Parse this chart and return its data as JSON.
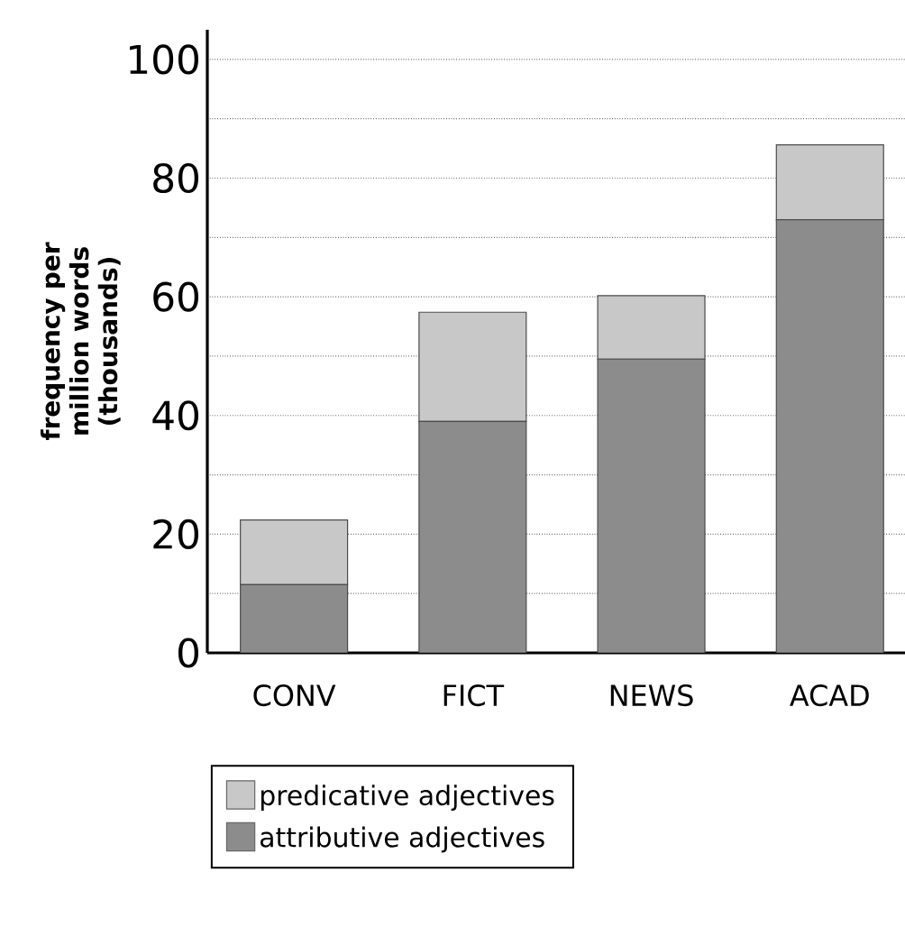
{
  "chart_data": {
    "type": "bar",
    "stacked": true,
    "ylabel": "frequency per million words (thousands)",
    "categories": [
      "CONV",
      "FICT",
      "NEWS",
      "ACAD"
    ],
    "series": [
      {
        "name": "attributive adjectives",
        "color": "#8c8c8c",
        "values": [
          11.5,
          39,
          49.5,
          73
        ]
      },
      {
        "name": "predicative adjectives",
        "color": "#c8c8c8",
        "values": [
          10.9,
          18.4,
          10.7,
          12.6
        ]
      }
    ],
    "ylim": [
      0,
      105
    ],
    "yticks": [
      0,
      {
        "value": 10,
        "label": null
      },
      20,
      {
        "value": 30,
        "label": null
      },
      40,
      {
        "value": 50,
        "label": null
      },
      60,
      {
        "value": 70,
        "label": null
      },
      80,
      {
        "value": 90,
        "label": null
      },
      100
    ],
    "grid": "y",
    "legend": "bottom"
  }
}
